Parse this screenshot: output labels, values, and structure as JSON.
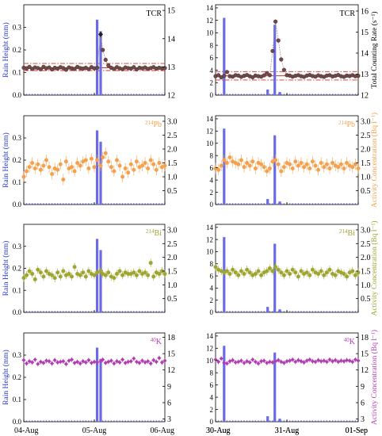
{
  "colors": {
    "rain": "#6b6bea",
    "tcr": "#555555",
    "tcr_edge": "#8b1a1a",
    "pb": "#f5a04d",
    "bi": "#9ea632",
    "k": "#b23fb2",
    "mean_line": "#c43a2a",
    "axis_blue": "#2233cc"
  },
  "rows": [
    {
      "key": "tcr",
      "label_sup": "",
      "label_main": "TCR",
      "right_label": "Total Counting Rate (s⁻¹)"
    },
    {
      "key": "pb",
      "label_sup": "214",
      "label_main": "Pb",
      "right_label": "Activity Concentration (Bq l⁻¹)"
    },
    {
      "key": "bi",
      "label_sup": "214",
      "label_main": "Bi",
      "right_label": "Activity Concentration (Bq l⁻¹)"
    },
    {
      "key": "k",
      "label_sup": "40",
      "label_main": "K",
      "right_label": "Activity Concentration (Bq l⁻¹)"
    }
  ],
  "left_ylabel": "Rain Height (mm)",
  "chart_data": [
    {
      "type": "bar+scatter",
      "panel": "left",
      "row": "tcr",
      "x_ticklabels": [
        "04-Aug",
        "05-Aug",
        "06-Aug"
      ],
      "left_ylim": [
        0,
        0.4
      ],
      "left_ticks": [
        0.0,
        0.1,
        0.2,
        0.3
      ],
      "right_ylim": [
        12,
        15.2
      ],
      "right_ticks": [
        12,
        13,
        14,
        15
      ],
      "rain": [
        {
          "x": 1.04,
          "h": 0.334
        },
        {
          "x": 1.09,
          "h": 0.283
        }
      ],
      "scatter": {
        "x": [
          0.0,
          0.04,
          0.08,
          0.12,
          0.16,
          0.2,
          0.24,
          0.28,
          0.32,
          0.36,
          0.4,
          0.44,
          0.48,
          0.52,
          0.56,
          0.6,
          0.64,
          0.68,
          0.72,
          0.76,
          0.8,
          0.84,
          0.88,
          0.92,
          0.96,
          1.0,
          1.04,
          1.09,
          1.12,
          1.16,
          1.2,
          1.24,
          1.28,
          1.32,
          1.36,
          1.4,
          1.44,
          1.48,
          1.52,
          1.56,
          1.6,
          1.64,
          1.68,
          1.72,
          1.76,
          1.8,
          1.84,
          1.88,
          1.92,
          1.96,
          2.0
        ],
        "y": [
          12.97,
          12.95,
          13.0,
          12.93,
          12.98,
          12.96,
          12.92,
          13.0,
          12.95,
          12.98,
          12.91,
          12.97,
          12.94,
          12.99,
          12.96,
          12.9,
          12.98,
          12.95,
          12.93,
          13.0,
          12.96,
          12.94,
          12.97,
          12.92,
          12.99,
          12.95,
          12.97,
          14.15,
          13.6,
          13.25,
          13.05,
          12.97,
          12.93,
          12.99,
          12.95,
          12.92,
          12.98,
          12.96,
          12.94,
          12.99,
          12.91,
          12.97,
          12.95,
          12.98,
          12.93,
          12.96,
          12.99,
          12.94,
          12.97,
          12.95,
          12.96
        ]
      },
      "mean": 12.97,
      "band": [
        12.87,
        13.12
      ]
    },
    {
      "type": "bar+scatter",
      "panel": "right",
      "row": "tcr",
      "x_ticklabels": [
        "30-Aug",
        "31-Aug",
        "01-Sep"
      ],
      "left_ylim": [
        0,
        14.5
      ],
      "left_ticks": [
        0,
        2,
        4,
        6,
        8,
        10,
        12,
        14
      ],
      "right_ylim": [
        12,
        16.3
      ],
      "right_ticks": [
        12,
        13,
        14,
        15,
        16
      ],
      "rain": [
        {
          "x": 0.12,
          "h": 12.4
        },
        {
          "x": 0.73,
          "h": 0.9
        },
        {
          "x": 0.83,
          "h": 11.3
        },
        {
          "x": 0.9,
          "h": 0.5
        }
      ],
      "scatter": {
        "x": [
          0.0,
          0.04,
          0.08,
          0.12,
          0.16,
          0.2,
          0.24,
          0.28,
          0.32,
          0.36,
          0.4,
          0.44,
          0.48,
          0.52,
          0.56,
          0.6,
          0.64,
          0.68,
          0.72,
          0.76,
          0.8,
          0.84,
          0.88,
          0.92,
          0.96,
          1.0,
          1.04,
          1.08,
          1.12,
          1.16,
          1.2,
          1.24,
          1.28,
          1.32,
          1.36,
          1.4,
          1.44,
          1.48,
          1.52,
          1.56,
          1.6,
          1.64,
          1.68,
          1.72,
          1.76,
          1.8,
          1.84,
          1.88,
          1.92,
          1.96,
          2.0
        ],
        "y": [
          12.9,
          12.95,
          12.85,
          12.92,
          13.1,
          12.9,
          12.88,
          12.95,
          12.93,
          12.87,
          12.92,
          12.96,
          12.9,
          12.85,
          12.93,
          12.9,
          12.88,
          12.94,
          13.05,
          12.95,
          14.1,
          15.5,
          14.6,
          13.7,
          13.2,
          12.95,
          12.93,
          12.88,
          12.92,
          12.95,
          12.9,
          12.87,
          12.93,
          12.96,
          12.91,
          12.88,
          12.94,
          12.9,
          12.87,
          12.93,
          12.95,
          12.89,
          12.92,
          12.96,
          12.9,
          12.87,
          12.93,
          12.91,
          12.95,
          12.9,
          12.92
        ]
      },
      "mean": 12.92,
      "band": [
        12.72,
        13.12
      ]
    },
    {
      "type": "bar+scatter",
      "panel": "left",
      "row": "pb",
      "left_ylim": [
        0,
        0.4
      ],
      "left_ticks": [
        0.0,
        0.1,
        0.2,
        0.3
      ],
      "right_ylim": [
        0,
        3.2
      ],
      "right_ticks": [
        0.5,
        1.0,
        1.5,
        2.0,
        2.5,
        3.0
      ],
      "rain": [
        {
          "x": 1.04,
          "h": 0.334
        },
        {
          "x": 1.09,
          "h": 0.283
        }
      ],
      "scatter": {
        "x": [
          0.0,
          0.04,
          0.08,
          0.12,
          0.16,
          0.2,
          0.24,
          0.28,
          0.32,
          0.36,
          0.4,
          0.44,
          0.48,
          0.52,
          0.56,
          0.6,
          0.64,
          0.68,
          0.72,
          0.76,
          0.8,
          0.84,
          0.88,
          0.92,
          0.96,
          1.0,
          1.04,
          1.09,
          1.12,
          1.16,
          1.2,
          1.24,
          1.28,
          1.32,
          1.36,
          1.4,
          1.44,
          1.48,
          1.52,
          1.56,
          1.6,
          1.64,
          1.68,
          1.72,
          1.76,
          1.8,
          1.84,
          1.88,
          1.92,
          1.96,
          2.0
        ],
        "y": [
          1.0,
          1.2,
          1.35,
          1.5,
          1.3,
          1.45,
          1.25,
          1.4,
          1.6,
          1.35,
          1.1,
          1.3,
          1.25,
          1.45,
          0.9,
          1.55,
          1.3,
          1.35,
          1.2,
          1.5,
          1.4,
          1.55,
          1.6,
          1.3,
          1.65,
          1.35,
          1.6,
          1.4,
          1.7,
          1.85,
          1.55,
          1.35,
          1.2,
          1.6,
          1.4,
          1.0,
          1.3,
          1.15,
          1.45,
          1.25,
          1.55,
          1.35,
          1.4,
          1.5,
          1.3,
          1.6,
          1.45,
          1.25,
          1.5,
          1.35,
          1.4
        ],
        "err": 0.2
      }
    },
    {
      "type": "bar+scatter",
      "panel": "right",
      "row": "pb",
      "left_ylim": [
        0,
        14.5
      ],
      "left_ticks": [
        0,
        2,
        4,
        6,
        8,
        10,
        12,
        14
      ],
      "right_ylim": [
        0,
        3.2
      ],
      "right_ticks": [
        0.5,
        1.0,
        1.5,
        2.0,
        2.5,
        3.0
      ],
      "rain": [
        {
          "x": 0.12,
          "h": 12.4
        },
        {
          "x": 0.73,
          "h": 0.9
        },
        {
          "x": 0.83,
          "h": 11.3
        },
        {
          "x": 0.9,
          "h": 0.5
        }
      ],
      "scatter": {
        "x": [
          0.0,
          0.04,
          0.08,
          0.12,
          0.16,
          0.2,
          0.24,
          0.28,
          0.32,
          0.36,
          0.4,
          0.44,
          0.48,
          0.52,
          0.56,
          0.6,
          0.64,
          0.68,
          0.72,
          0.76,
          0.8,
          0.84,
          0.88,
          0.92,
          0.96,
          1.0,
          1.04,
          1.08,
          1.12,
          1.16,
          1.2,
          1.24,
          1.28,
          1.32,
          1.36,
          1.4,
          1.44,
          1.48,
          1.52,
          1.56,
          1.6,
          1.64,
          1.68,
          1.72,
          1.76,
          1.8,
          1.84,
          1.88,
          1.92,
          1.96,
          2.0
        ],
        "y": [
          1.3,
          1.25,
          1.4,
          1.6,
          1.5,
          1.7,
          1.55,
          1.5,
          1.45,
          1.6,
          1.35,
          1.5,
          1.4,
          1.55,
          1.3,
          1.5,
          1.45,
          1.35,
          1.2,
          1.3,
          1.55,
          1.6,
          1.45,
          1.2,
          1.35,
          1.5,
          1.45,
          1.3,
          1.55,
          1.4,
          1.5,
          1.35,
          1.45,
          1.3,
          1.55,
          1.4,
          1.25,
          1.5,
          1.35,
          1.45,
          1.3,
          1.5,
          1.4,
          1.35,
          1.45,
          1.3,
          1.5,
          1.4,
          1.35,
          1.45,
          1.3
        ],
        "err": 0.2
      }
    },
    {
      "type": "bar+scatter",
      "panel": "left",
      "row": "bi",
      "left_ylim": [
        0,
        0.4
      ],
      "left_ticks": [
        0.0,
        0.1,
        0.2,
        0.3
      ],
      "right_ylim": [
        0,
        3.2
      ],
      "right_ticks": [
        0.5,
        1.0,
        1.5,
        2.0,
        2.5,
        3.0
      ],
      "rain": [
        {
          "x": 1.04,
          "h": 0.334
        },
        {
          "x": 1.09,
          "h": 0.283
        }
      ],
      "scatter": {
        "x": [
          0.0,
          0.04,
          0.08,
          0.12,
          0.16,
          0.2,
          0.24,
          0.28,
          0.32,
          0.36,
          0.4,
          0.44,
          0.48,
          0.52,
          0.56,
          0.6,
          0.64,
          0.68,
          0.72,
          0.76,
          0.8,
          0.84,
          0.88,
          0.92,
          0.96,
          1.0,
          1.04,
          1.09,
          1.12,
          1.16,
          1.2,
          1.24,
          1.28,
          1.32,
          1.36,
          1.4,
          1.44,
          1.48,
          1.52,
          1.56,
          1.6,
          1.64,
          1.68,
          1.72,
          1.76,
          1.8,
          1.84,
          1.88,
          1.92,
          1.96,
          2.0
        ],
        "y": [
          1.25,
          1.35,
          1.5,
          1.4,
          1.2,
          1.55,
          1.45,
          1.3,
          1.5,
          1.4,
          1.35,
          1.25,
          1.45,
          1.3,
          1.5,
          1.35,
          1.4,
          1.3,
          1.65,
          1.4,
          1.35,
          1.45,
          1.3,
          1.5,
          1.4,
          1.35,
          1.45,
          1.5,
          1.4,
          1.35,
          1.45,
          1.3,
          1.25,
          1.4,
          1.5,
          1.35,
          1.45,
          1.4,
          1.4,
          1.45,
          1.35,
          1.5,
          1.4,
          1.45,
          1.35,
          1.8,
          1.3,
          1.45,
          1.4,
          1.5,
          1.4
        ],
        "err": 0.15
      }
    },
    {
      "type": "bar+scatter",
      "panel": "right",
      "row": "bi",
      "left_ylim": [
        0,
        14.5
      ],
      "left_ticks": [
        0,
        2,
        4,
        6,
        8,
        10,
        12,
        14
      ],
      "right_ylim": [
        0,
        3.2
      ],
      "right_ticks": [
        0.5,
        1.0,
        1.5,
        2.0,
        2.5,
        3.0
      ],
      "rain": [
        {
          "x": 0.12,
          "h": 12.4
        },
        {
          "x": 0.73,
          "h": 0.9
        },
        {
          "x": 0.83,
          "h": 11.3
        },
        {
          "x": 0.9,
          "h": 0.5
        }
      ],
      "scatter": {
        "x": [
          0.0,
          0.04,
          0.08,
          0.12,
          0.16,
          0.2,
          0.24,
          0.28,
          0.32,
          0.36,
          0.4,
          0.44,
          0.48,
          0.52,
          0.56,
          0.6,
          0.64,
          0.68,
          0.72,
          0.76,
          0.8,
          0.84,
          0.88,
          0.92,
          0.96,
          1.0,
          1.04,
          1.08,
          1.12,
          1.16,
          1.2,
          1.24,
          1.28,
          1.32,
          1.36,
          1.4,
          1.44,
          1.48,
          1.52,
          1.56,
          1.6,
          1.64,
          1.68,
          1.72,
          1.76,
          1.8,
          1.84,
          1.88,
          1.92,
          1.96,
          2.0
        ],
        "y": [
          1.65,
          1.55,
          1.5,
          1.45,
          1.5,
          1.4,
          1.55,
          1.45,
          1.35,
          1.5,
          1.4,
          1.55,
          1.45,
          1.35,
          1.4,
          1.5,
          1.35,
          1.45,
          1.5,
          1.6,
          1.5,
          1.65,
          1.55,
          1.45,
          1.35,
          1.5,
          1.4,
          1.55,
          1.45,
          1.3,
          1.5,
          1.4,
          1.45,
          1.35,
          1.55,
          1.45,
          1.4,
          1.5,
          1.35,
          1.45,
          1.55,
          1.4,
          1.35,
          1.5,
          1.45,
          1.4,
          1.3,
          1.45,
          1.5,
          1.35,
          1.45
        ],
        "err": 0.15
      }
    },
    {
      "type": "bar+scatter",
      "panel": "left",
      "row": "k",
      "left_ylim": [
        0,
        0.4
      ],
      "left_ticks": [
        0.0,
        0.1,
        0.2,
        0.3
      ],
      "right_ylim": [
        2.5,
        18.8
      ],
      "right_ticks": [
        3,
        6,
        9,
        12,
        15,
        18
      ],
      "rain": [
        {
          "x": 1.04,
          "h": 0.334
        },
        {
          "x": 1.09,
          "h": 0.283
        }
      ],
      "scatter": {
        "x": [
          0.0,
          0.04,
          0.08,
          0.12,
          0.16,
          0.2,
          0.24,
          0.28,
          0.32,
          0.36,
          0.4,
          0.44,
          0.48,
          0.52,
          0.56,
          0.6,
          0.64,
          0.68,
          0.72,
          0.76,
          0.8,
          0.84,
          0.88,
          0.92,
          0.96,
          1.0,
          1.04,
          1.09,
          1.12,
          1.16,
          1.2,
          1.24,
          1.28,
          1.32,
          1.36,
          1.4,
          1.44,
          1.48,
          1.52,
          1.56,
          1.6,
          1.64,
          1.68,
          1.72,
          1.76,
          1.8,
          1.84,
          1.88,
          1.92,
          1.96,
          2.0
        ],
        "y": [
          13.8,
          13.2,
          13.6,
          13.4,
          13.9,
          13.1,
          13.5,
          13.3,
          13.7,
          13.6,
          13.2,
          13.8,
          13.4,
          13.5,
          13.6,
          13.1,
          13.7,
          13.9,
          13.3,
          13.5,
          13.2,
          13.6,
          13.4,
          13.8,
          13.3,
          13.5,
          13.4,
          13.6,
          13.9,
          13.3,
          13.5,
          13.7,
          13.2,
          13.6,
          13.4,
          13.9,
          13.3,
          13.5,
          13.6,
          14.1,
          13.5,
          13.3,
          13.7,
          13.4,
          13.6,
          13.2,
          13.8,
          13.5,
          14.2,
          13.4,
          13.7
        ],
        "err": 0.45
      }
    },
    {
      "type": "bar+scatter",
      "panel": "right",
      "row": "k",
      "x_ticklabels": [
        "30-Aug",
        "31-Aug",
        "01-Sep"
      ],
      "left_ylim": [
        0,
        14.5
      ],
      "left_ticks": [
        0,
        2,
        4,
        6,
        8,
        10,
        12,
        14
      ],
      "right_ylim": [
        2.5,
        18.8
      ],
      "right_ticks": [
        3,
        6,
        9,
        12,
        15,
        18
      ],
      "rain": [
        {
          "x": 0.12,
          "h": 12.4
        },
        {
          "x": 0.73,
          "h": 0.9
        },
        {
          "x": 0.83,
          "h": 11.3
        },
        {
          "x": 0.9,
          "h": 0.5
        }
      ],
      "scatter": {
        "x": [
          0.0,
          0.04,
          0.08,
          0.12,
          0.16,
          0.2,
          0.24,
          0.28,
          0.32,
          0.36,
          0.4,
          0.44,
          0.48,
          0.52,
          0.56,
          0.6,
          0.64,
          0.68,
          0.72,
          0.76,
          0.8,
          0.84,
          0.88,
          0.92,
          0.96,
          1.0,
          1.04,
          1.08,
          1.12,
          1.16,
          1.2,
          1.24,
          1.28,
          1.32,
          1.36,
          1.4,
          1.44,
          1.48,
          1.52,
          1.56,
          1.6,
          1.64,
          1.68,
          1.72,
          1.76,
          1.8,
          1.84,
          1.88,
          1.92,
          1.96,
          2.0
        ],
        "y": [
          13.9,
          13.5,
          14.1,
          13.3,
          13.2,
          13.6,
          13.8,
          13.4,
          13.5,
          13.7,
          13.3,
          13.6,
          13.4,
          13.9,
          13.5,
          13.2,
          13.6,
          13.7,
          13.3,
          13.5,
          13.4,
          13.6,
          13.8,
          13.5,
          13.3,
          13.6,
          13.7,
          13.9,
          13.5,
          13.8,
          13.6,
          13.4,
          13.7,
          13.9,
          13.6,
          13.5,
          13.8,
          13.6,
          13.7,
          13.5,
          13.9,
          13.6,
          13.8,
          13.5,
          13.7,
          13.6,
          13.8,
          13.7,
          13.5,
          13.9,
          13.7
        ],
        "err": 0.45
      }
    }
  ]
}
